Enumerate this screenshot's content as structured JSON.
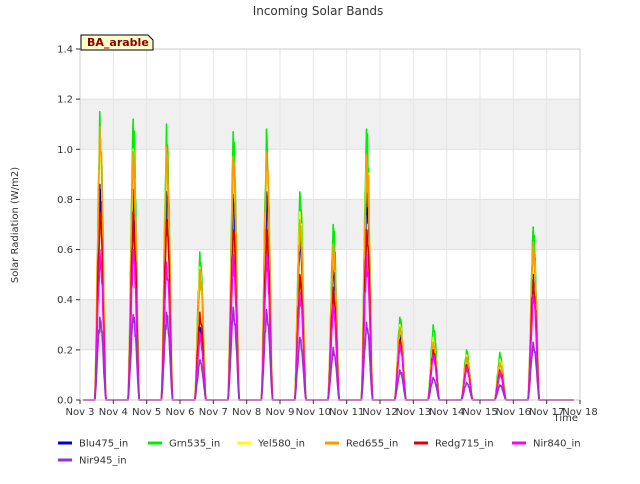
{
  "chart_data": {
    "type": "line",
    "title": "Incoming Solar Bands",
    "xlabel": "Time",
    "ylabel": "Solar Radiation (W/m2)",
    "site_label": "BA_arable",
    "ylim": [
      0,
      1.4
    ],
    "xlim": [
      0,
      15
    ],
    "yticks": [
      0.0,
      0.2,
      0.4,
      0.6,
      0.8,
      1.0,
      1.2,
      1.4
    ],
    "ytick_labels": [
      "0.0",
      "0.2",
      "0.4",
      "0.6",
      "0.8",
      "1.0",
      "1.2",
      "1.4"
    ],
    "xticks": [
      0,
      1,
      2,
      3,
      4,
      5,
      6,
      7,
      8,
      9,
      10,
      11,
      12,
      13,
      14,
      15
    ],
    "xtick_labels": [
      "Nov 3",
      "Nov 4",
      "Nov 5",
      "Nov 6",
      "Nov 7",
      "Nov 8",
      "Nov 9",
      "Nov 10",
      "Nov 11",
      "Nov 12",
      "Nov 13",
      "Nov 14",
      "Nov 15",
      "Nov 16",
      "Nov 17",
      "Nov 18"
    ],
    "grid": true,
    "legend_position": "bottom",
    "day_offsets": [
      0.3,
      1.3,
      2.3,
      3.3,
      4.3,
      5.3,
      6.3,
      7.3,
      8.3,
      9.3,
      10.3,
      11.3,
      12.3,
      13.3,
      14.3
    ],
    "series": [
      {
        "name": "Blu475_in",
        "color": "#0000cc",
        "daily_peaks": [
          0.86,
          0.84,
          0.83,
          0.29,
          0.82,
          0.83,
          0.66,
          0.54,
          0.84,
          0.26,
          0.2,
          0.14,
          0.11,
          0.5,
          0.0
        ]
      },
      {
        "name": "Grn535_in",
        "color": "#00ee00",
        "daily_peaks": [
          1.15,
          1.12,
          1.1,
          0.59,
          1.07,
          1.08,
          0.83,
          0.7,
          1.08,
          0.33,
          0.3,
          0.2,
          0.19,
          0.69,
          0.0
        ]
      },
      {
        "name": "Yel580_in",
        "color": "#ffff00",
        "daily_peaks": [
          1.07,
          1.0,
          1.0,
          0.53,
          0.97,
          0.98,
          0.75,
          0.62,
          0.97,
          0.3,
          0.25,
          0.18,
          0.16,
          0.62,
          0.0
        ]
      },
      {
        "name": "Red655_in",
        "color": "#ff9900",
        "daily_peaks": [
          1.09,
          0.99,
          1.01,
          0.52,
          0.97,
          0.99,
          0.72,
          0.62,
          0.98,
          0.29,
          0.23,
          0.17,
          0.15,
          0.63,
          0.0
        ]
      },
      {
        "name": "Redg715_in",
        "color": "#dd0000",
        "daily_peaks": [
          0.75,
          0.75,
          0.72,
          0.35,
          0.68,
          0.68,
          0.5,
          0.45,
          0.68,
          0.24,
          0.2,
          0.14,
          0.12,
          0.48,
          0.0
        ]
      },
      {
        "name": "Nir840_in",
        "color": "#ff00ff",
        "daily_peaks": [
          0.6,
          0.6,
          0.55,
          0.27,
          0.58,
          0.58,
          0.43,
          0.38,
          0.58,
          0.22,
          0.18,
          0.13,
          0.11,
          0.42,
          0.0
        ]
      },
      {
        "name": "Nir945_in",
        "color": "#9933cc",
        "daily_peaks": [
          0.33,
          0.34,
          0.35,
          0.16,
          0.37,
          0.36,
          0.25,
          0.21,
          0.31,
          0.12,
          0.09,
          0.07,
          0.06,
          0.23,
          0.0
        ]
      }
    ]
  }
}
